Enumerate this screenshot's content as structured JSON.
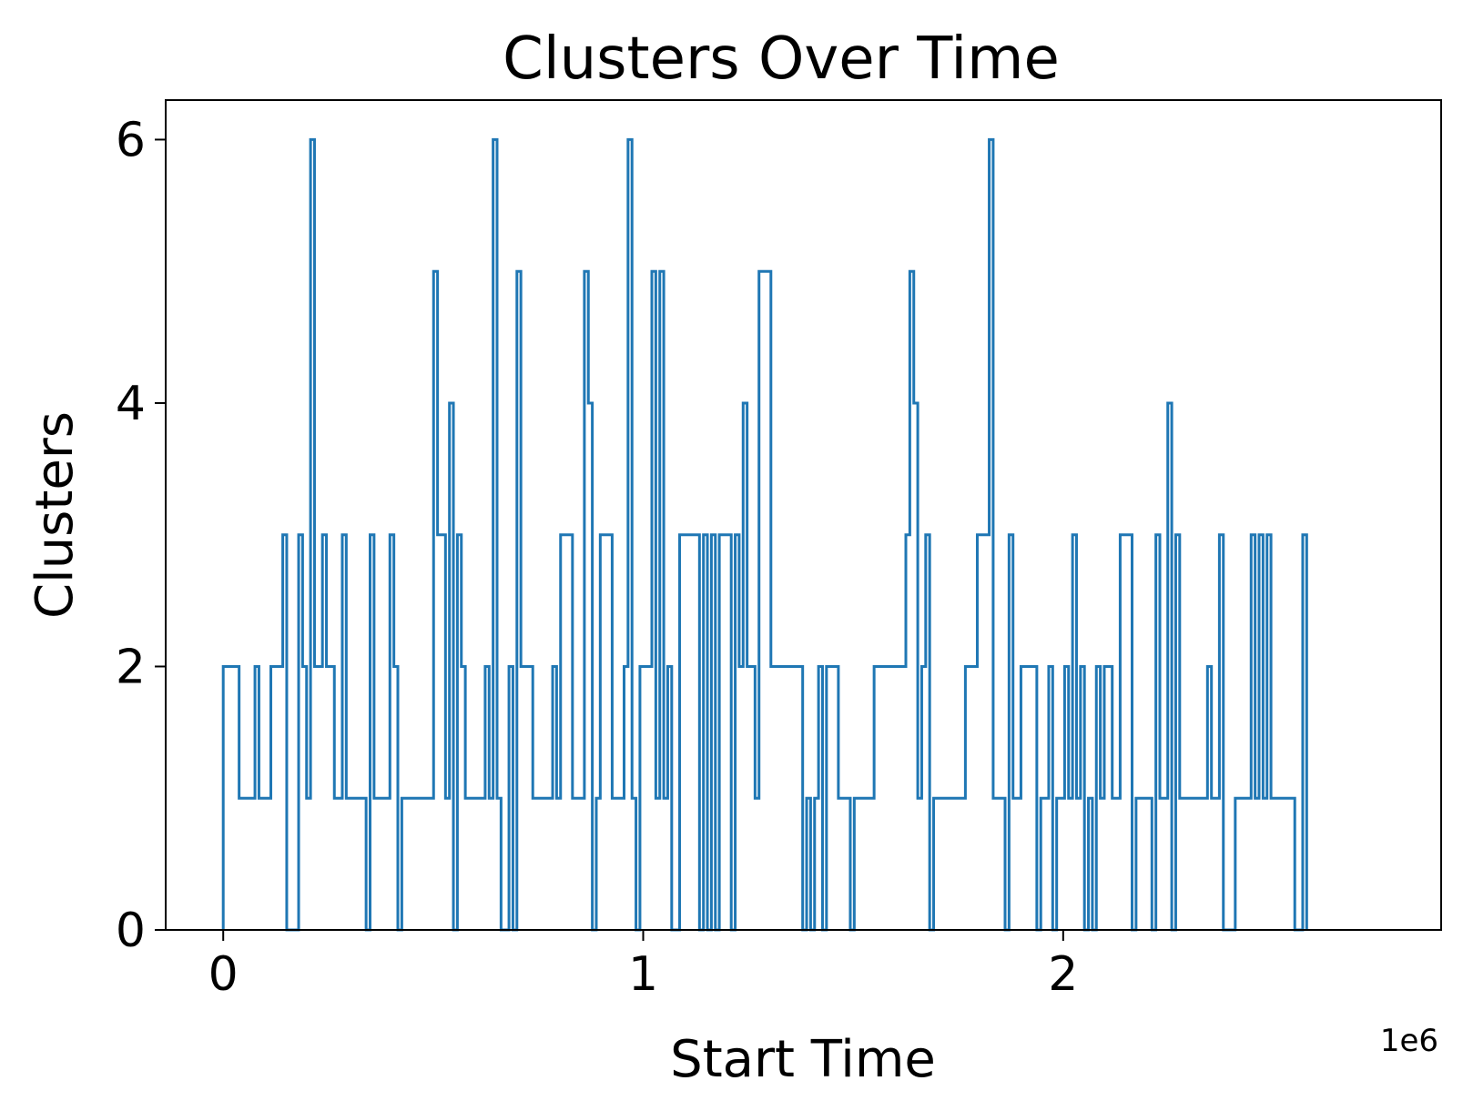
{
  "chart_data": {
    "type": "line",
    "style": "step-histogram",
    "title": "Clusters Over Time",
    "xlabel": "Start Time",
    "ylabel": "Clusters",
    "x_offset_label": "1e6",
    "x_scale": 1000000,
    "xlim": [
      -137000,
      2900000
    ],
    "ylim": [
      0,
      6.3
    ],
    "xticks": [
      0,
      1000000,
      2000000
    ],
    "xtick_labels": [
      "0",
      "1",
      "2"
    ],
    "yticks": [
      0,
      2,
      4,
      6
    ],
    "ytick_labels": [
      "0",
      "2",
      "4",
      "6"
    ],
    "grid": false,
    "color": "#1f77b4",
    "bin_width": 9450,
    "series": [
      {
        "x_start": 0,
        "values": [
          2,
          2,
          2,
          2,
          1,
          1,
          1,
          1,
          2,
          1,
          1,
          1,
          2,
          2,
          2,
          3,
          0,
          0,
          0,
          3,
          2,
          1,
          6,
          2,
          2,
          3,
          2,
          2,
          1,
          1,
          3,
          1,
          1,
          1,
          1,
          1,
          0,
          3,
          1,
          1,
          1,
          1,
          3,
          2,
          0,
          1,
          1,
          1,
          1,
          1,
          1,
          1,
          1,
          5,
          3,
          3,
          1,
          4,
          0,
          3,
          2,
          1,
          1,
          1,
          1,
          1,
          2,
          1,
          6,
          1,
          0,
          0,
          2,
          0,
          5,
          2,
          2,
          2,
          1,
          1,
          1,
          1,
          1,
          2,
          1,
          3,
          3,
          3,
          1,
          1,
          1,
          5,
          4,
          0,
          1,
          3,
          3,
          3,
          1,
          1,
          1,
          2,
          6,
          1,
          0,
          2,
          2,
          2,
          5,
          1,
          5,
          1,
          2,
          0,
          0,
          3,
          3,
          3,
          3,
          3,
          0,
          3,
          0,
          3,
          0,
          3,
          3,
          3,
          0,
          3,
          2,
          4,
          2,
          2,
          1,
          5,
          5,
          5,
          2,
          2,
          2,
          2,
          2,
          2,
          2,
          2,
          0,
          1,
          0,
          1,
          2,
          0,
          2,
          2,
          2,
          1,
          1,
          1,
          0,
          1,
          1,
          1,
          1,
          1,
          2,
          2,
          2,
          2,
          2,
          2,
          2,
          2,
          3,
          5,
          4,
          1,
          2,
          3,
          0,
          1,
          1,
          1,
          1,
          1,
          1,
          1,
          1,
          2,
          2,
          2,
          3,
          3,
          3,
          6,
          1,
          1,
          1,
          0,
          3,
          1,
          1,
          2,
          2,
          2,
          2,
          0,
          1,
          1,
          2,
          0,
          1,
          1,
          2,
          1,
          3,
          1,
          2,
          0,
          1,
          0,
          2,
          1,
          2,
          2,
          1,
          1,
          3,
          3,
          3,
          0,
          1,
          1,
          1,
          1,
          0,
          3,
          1,
          1,
          4,
          0,
          3,
          1,
          1,
          1,
          1,
          1,
          1,
          1,
          2,
          1,
          1,
          3,
          0,
          0,
          0,
          1,
          1,
          1,
          1,
          3,
          1,
          3,
          1,
          3,
          1,
          1,
          1,
          1,
          1,
          1,
          0,
          0,
          3
        ]
      }
    ]
  }
}
